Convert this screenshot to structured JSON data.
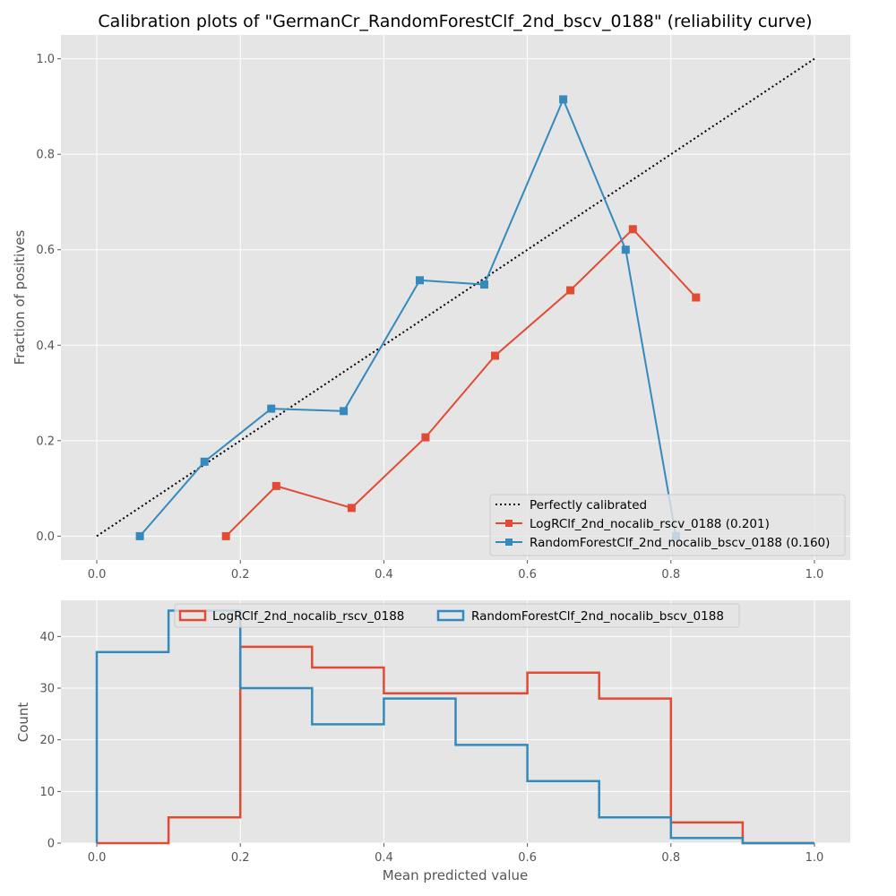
{
  "chart_data": [
    {
      "type": "line",
      "title": "Calibration plots of \"GermanCr_RandomForestClf_2nd_bscv_0188\" (reliability curve)",
      "xlabel": "",
      "ylabel": "Fraction of positives",
      "xlim": [
        -0.05,
        1.05
      ],
      "ylim": [
        -0.05,
        1.05
      ],
      "xticks": [
        "0.0",
        "0.2",
        "0.4",
        "0.6",
        "0.8",
        "1.0"
      ],
      "yticks": [
        "0.0",
        "0.2",
        "0.4",
        "0.6",
        "0.8",
        "1.0"
      ],
      "grid": true,
      "legend_position": "lower-right",
      "reference": {
        "name": "Perfectly calibrated",
        "x": [
          0,
          1
        ],
        "y": [
          0,
          1
        ],
        "style": "dotted",
        "color": "#000000"
      },
      "series": [
        {
          "name": "LogRClf_2nd_nocalib_rscv_0188 (0.201)",
          "color": "#E24A33",
          "x": [
            0.18,
            0.25,
            0.355,
            0.458,
            0.555,
            0.66,
            0.747,
            0.835
          ],
          "y": [
            0.0,
            0.105,
            0.059,
            0.207,
            0.378,
            0.515,
            0.643,
            0.5
          ]
        },
        {
          "name": "RandomForestClf_2nd_nocalib_bscv_0188 (0.160)",
          "color": "#348ABD",
          "x": [
            0.06,
            0.15,
            0.243,
            0.344,
            0.45,
            0.54,
            0.65,
            0.737,
            0.807
          ],
          "y": [
            0.0,
            0.156,
            0.267,
            0.262,
            0.536,
            0.527,
            0.915,
            0.6,
            0.0
          ]
        }
      ]
    },
    {
      "type": "histogram",
      "title": "",
      "xlabel": "Mean predicted value",
      "ylabel": "Count",
      "xlim": [
        -0.05,
        1.05
      ],
      "ylim": [
        0,
        47
      ],
      "xticks": [
        "0.0",
        "0.2",
        "0.4",
        "0.6",
        "0.8",
        "1.0"
      ],
      "yticks": [
        "0",
        "10",
        "20",
        "30",
        "40"
      ],
      "grid": true,
      "legend_position": "upper-center",
      "bin_edges": [
        0.0,
        0.1,
        0.2,
        0.3,
        0.4,
        0.5,
        0.6,
        0.7,
        0.8,
        0.9,
        1.0
      ],
      "series": [
        {
          "name": "LogRClf_2nd_nocalib_rscv_0188",
          "color": "#E24A33",
          "counts": [
            0,
            5,
            38,
            34,
            29,
            29,
            33,
            28,
            4,
            0
          ]
        },
        {
          "name": "RandomForestClf_2nd_nocalib_bscv_0188",
          "color": "#348ABD",
          "counts": [
            37,
            45,
            30,
            23,
            28,
            19,
            12,
            5,
            1,
            0
          ]
        }
      ]
    }
  ]
}
